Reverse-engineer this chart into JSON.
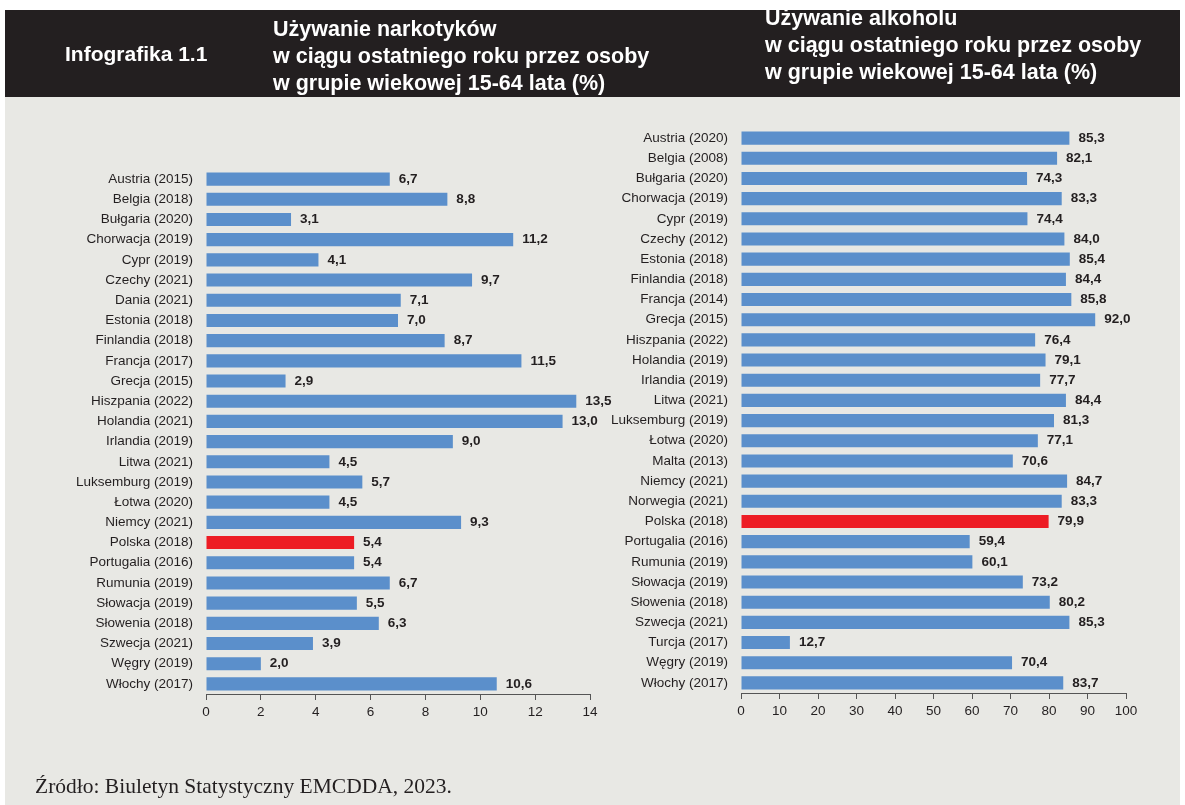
{
  "chart_data": [
    {
      "type": "bar",
      "orientation": "horizontal",
      "title": "Używanie narkotyków\nw ciągu ostatniego roku przez osoby\nw grupie wiekowej 15-64 lata (%)",
      "categories": [
        "Austria (2015)",
        "Belgia (2018)",
        "Bułgaria (2020)",
        "Chorwacja (2019)",
        "Cypr (2019)",
        "Czechy (2021)",
        "Dania (2021)",
        "Estonia (2018)",
        "Finlandia (2018)",
        "Francja (2017)",
        "Grecja (2015)",
        "Hiszpania (2022)",
        "Holandia (2021)",
        "Irlandia (2019)",
        "Litwa (2021)",
        "Luksemburg (2019)",
        "Łotwa (2020)",
        "Niemcy (2021)",
        "Polska (2018)",
        "Portugalia (2016)",
        "Rumunia (2019)",
        "Słowacja (2019)",
        "Słowenia (2018)",
        "Szwecja (2021)",
        "Węgry (2019)",
        "Włochy (2017)"
      ],
      "values": [
        6.7,
        8.8,
        3.1,
        11.2,
        4.1,
        9.7,
        7.1,
        7.0,
        8.7,
        11.5,
        2.9,
        13.5,
        13.0,
        9.0,
        4.5,
        5.7,
        4.5,
        9.3,
        5.4,
        5.4,
        6.7,
        5.5,
        6.3,
        3.9,
        2.0,
        10.6
      ],
      "colors": [
        "#5b8fcb",
        "#5b8fcb",
        "#5b8fcb",
        "#5b8fcb",
        "#5b8fcb",
        "#5b8fcb",
        "#5b8fcb",
        "#5b8fcb",
        "#5b8fcb",
        "#5b8fcb",
        "#5b8fcb",
        "#5b8fcb",
        "#5b8fcb",
        "#5b8fcb",
        "#5b8fcb",
        "#5b8fcb",
        "#5b8fcb",
        "#5b8fcb",
        "#ed1c24",
        "#5b8fcb",
        "#5b8fcb",
        "#5b8fcb",
        "#5b8fcb",
        "#5b8fcb",
        "#5b8fcb",
        "#5b8fcb"
      ],
      "value_labels": [
        "6,7",
        "8,8",
        "3,1",
        "11,2",
        "4,1",
        "9,7",
        "7,1",
        "7,0",
        "8,7",
        "11,5",
        "2,9",
        "13,5",
        "13,0",
        "9,0",
        "4,5",
        "5,7",
        "4,5",
        "9,3",
        "5,4",
        "5,4",
        "6,7",
        "5,5",
        "6,3",
        "3,9",
        "2,0",
        "10,6"
      ],
      "xlim": [
        0,
        14
      ],
      "xticks": [
        0,
        2,
        4,
        6,
        8,
        10,
        12,
        14
      ],
      "annotations": [
        "Infografika 1.1",
        "Źródło: Biuletyn Statystyczny EMCDDA, 2023."
      ]
    },
    {
      "type": "bar",
      "orientation": "horizontal",
      "title": "Używanie alkoholu\nw ciągu ostatniego roku przez osoby\nw grupie wiekowej 15-64 lata (%)",
      "categories": [
        "Austria (2020)",
        "Belgia (2008)",
        "Bułgaria (2020)",
        "Chorwacja (2019)",
        "Cypr (2019)",
        "Czechy (2012)",
        "Estonia (2018)",
        "Finlandia (2018)",
        "Francja (2014)",
        "Grecja (2015)",
        "Hiszpania (2022)",
        "Holandia (2019)",
        "Irlandia (2019)",
        "Litwa (2021)",
        "Luksemburg (2019)",
        "Łotwa (2020)",
        "Malta (2013)",
        "Niemcy (2021)",
        "Norwegia (2021)",
        "Polska (2018)",
        "Portugalia (2016)",
        "Rumunia (2019)",
        "Słowacja (2019)",
        "Słowenia (2018)",
        "Szwecja (2021)",
        "Turcja (2017)",
        "Węgry (2019)",
        "Włochy (2017)"
      ],
      "values": [
        85.3,
        82.1,
        74.3,
        83.3,
        74.4,
        84.0,
        85.4,
        84.4,
        85.8,
        92.0,
        76.4,
        79.1,
        77.7,
        84.4,
        81.3,
        77.1,
        70.6,
        84.7,
        83.3,
        79.9,
        59.4,
        60.1,
        73.2,
        80.2,
        85.3,
        12.7,
        70.4,
        83.7
      ],
      "colors": [
        "#5b8fcb",
        "#5b8fcb",
        "#5b8fcb",
        "#5b8fcb",
        "#5b8fcb",
        "#5b8fcb",
        "#5b8fcb",
        "#5b8fcb",
        "#5b8fcb",
        "#5b8fcb",
        "#5b8fcb",
        "#5b8fcb",
        "#5b8fcb",
        "#5b8fcb",
        "#5b8fcb",
        "#5b8fcb",
        "#5b8fcb",
        "#5b8fcb",
        "#5b8fcb",
        "#ed1c24",
        "#5b8fcb",
        "#5b8fcb",
        "#5b8fcb",
        "#5b8fcb",
        "#5b8fcb",
        "#5b8fcb",
        "#5b8fcb",
        "#5b8fcb"
      ],
      "value_labels": [
        "85,3",
        "82,1",
        "74,3",
        "83,3",
        "74,4",
        "84,0",
        "85,4",
        "84,4",
        "85,8",
        "92,0",
        "76,4",
        "79,1",
        "77,7",
        "84,4",
        "81,3",
        "77,1",
        "70,6",
        "84,7",
        "83,3",
        "79,9",
        "59,4",
        "60,1",
        "73,2",
        "80,2",
        "85,3",
        "12,7",
        "70,4",
        "83,7"
      ],
      "xlim": [
        0,
        100
      ],
      "xticks": [
        0,
        10,
        20,
        30,
        40,
        50,
        60,
        70,
        80,
        90,
        100
      ]
    }
  ]
}
